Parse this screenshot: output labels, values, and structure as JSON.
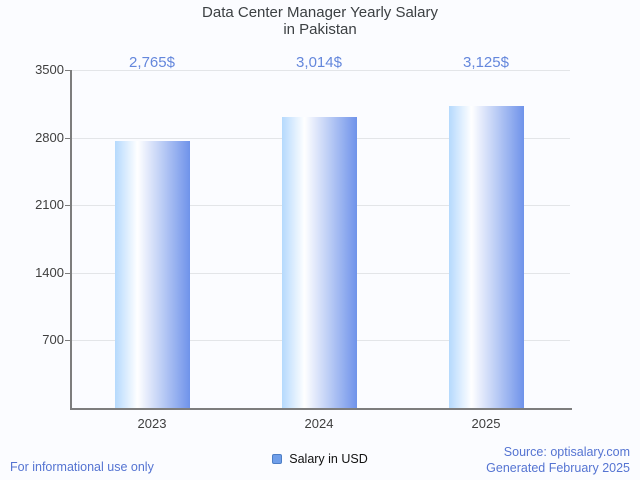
{
  "title": {
    "line1": "Data Center Manager Yearly Salary",
    "line2": "in Pakistan"
  },
  "chart_data": {
    "type": "bar",
    "title": "Data Center Manager Yearly Salary in Pakistan",
    "categories": [
      "2023",
      "2024",
      "2025"
    ],
    "series": [
      {
        "name": "Salary in USD",
        "values": [
          2765,
          3014,
          3125
        ]
      }
    ],
    "value_labels": [
      "2,765$",
      "3,014$",
      "3,125$"
    ],
    "xlabel": "",
    "ylabel": "",
    "ylim": [
      0,
      3500
    ],
    "yticks": [
      700,
      1400,
      2100,
      2800,
      3500
    ],
    "grid": true,
    "legend_position": "bottom"
  },
  "legend": {
    "label": "Salary in USD"
  },
  "footer": {
    "left_note": "For informational use only",
    "source": "Source: optisalary.com",
    "generated": "Generated February 2025"
  },
  "colors": {
    "background": "#fbfcff",
    "title_text": "#3c4043",
    "value_label_text": "#6487dc",
    "footer_text": "#5574d2",
    "axis": "#7d7d7d",
    "gridline": "#e3e5e8",
    "tick_label": "#3f3f3f",
    "bar_gradient_left": "#b5d9fd",
    "bar_gradient_mid": "#ffffff",
    "bar_gradient_right": "#6f93ea",
    "legend_marker_fill": "#6f9ee9",
    "legend_marker_border": "#4d7ec6"
  }
}
